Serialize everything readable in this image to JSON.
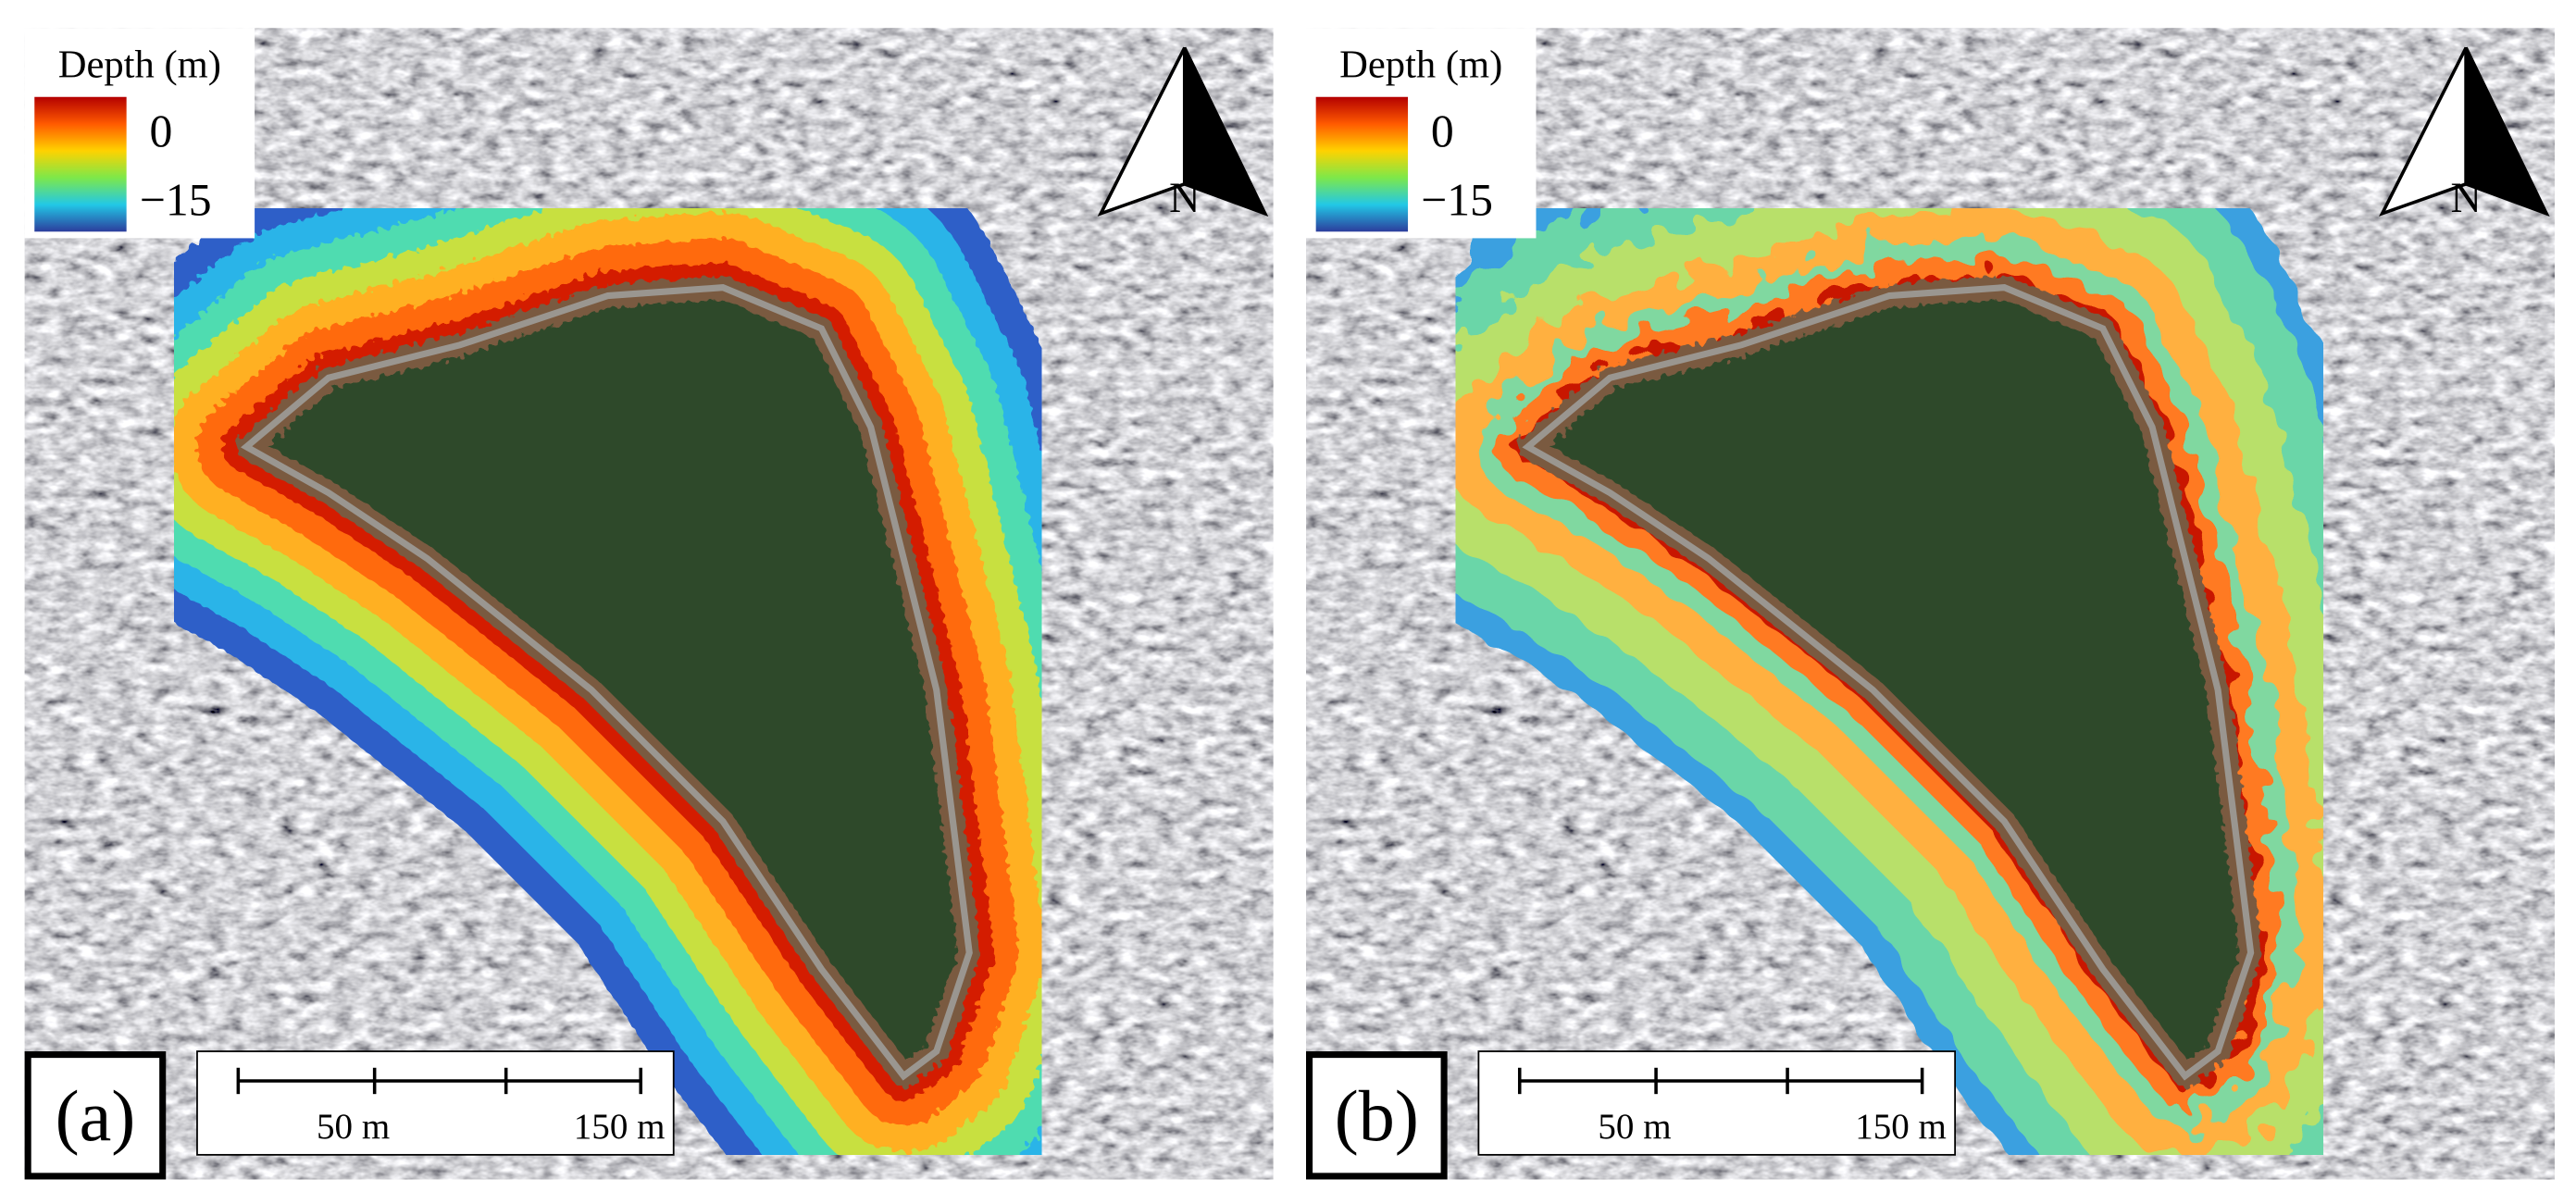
{
  "panels": [
    {
      "label": "(a)",
      "legend": {
        "title": "Depth (m)",
        "max": "0",
        "min": "−15"
      },
      "north": "N",
      "scale_bar": [
        "50 m",
        "150 m"
      ]
    },
    {
      "label": "(b)",
      "legend": {
        "title": "Depth (m)",
        "max": "0",
        "min": "−15"
      },
      "north": "N",
      "scale_bar": [
        "50 m",
        "150 m"
      ]
    }
  ]
}
